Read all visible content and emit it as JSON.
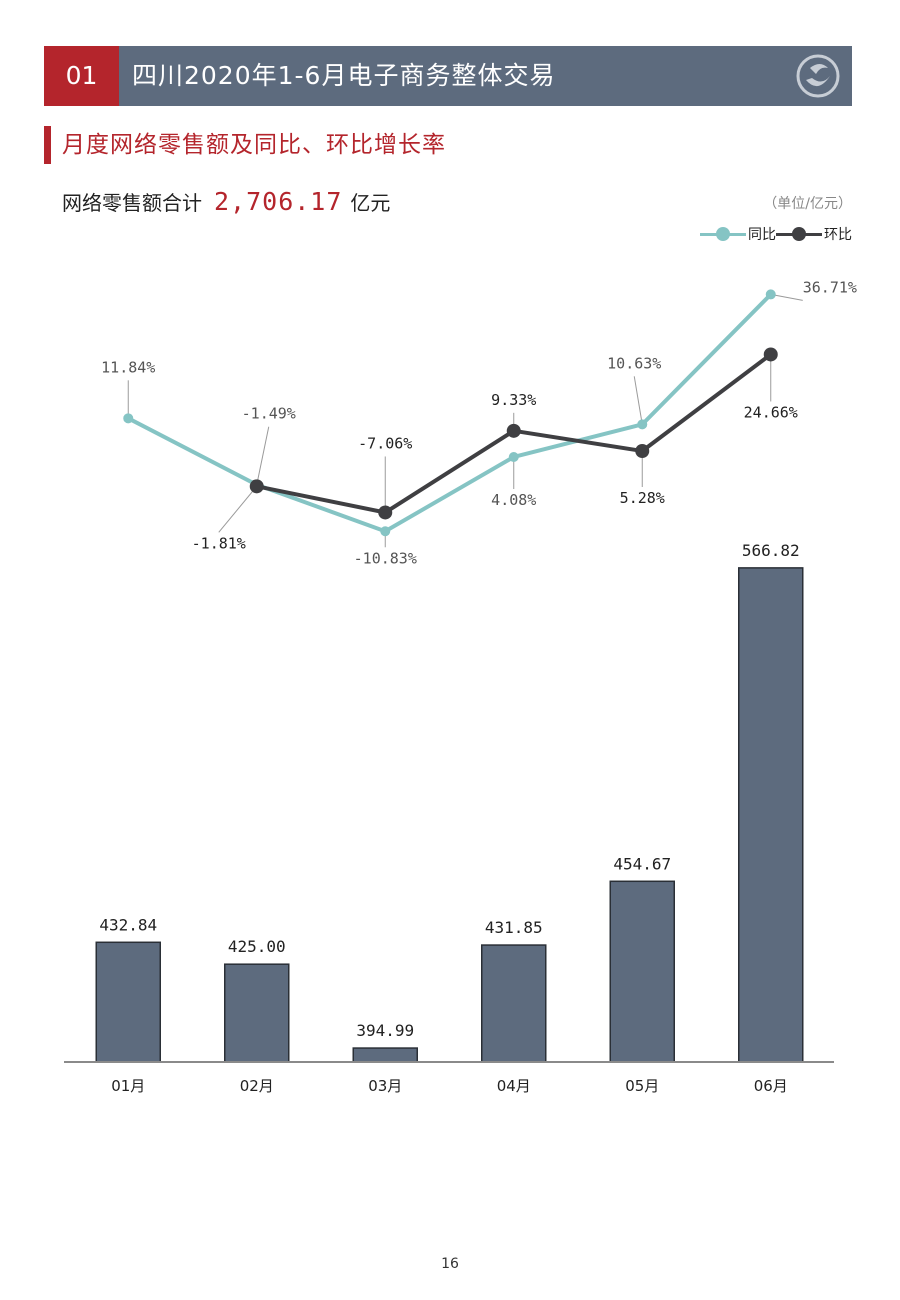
{
  "header": {
    "section_number": "01",
    "title": "四川2020年1-6月电子商务整体交易"
  },
  "section": {
    "title": "月度网络零售额及同比、环比增长率"
  },
  "summary": {
    "label": "网络零售额合计",
    "value": "2,706.17",
    "unit": "亿元"
  },
  "unit_note": "（单位/亿元）",
  "legend": {
    "yoy": "同比",
    "mom": "环比"
  },
  "colors": {
    "bar": "#5d6b7e",
    "yoy": "#85c4c4",
    "mom": "#3f3f42",
    "accent": "#b4252c"
  },
  "chart_data": {
    "type": "bar",
    "categories": [
      "01月",
      "02月",
      "03月",
      "04月",
      "05月",
      "06月"
    ],
    "values": [
      432.84,
      425.0,
      394.99,
      431.85,
      454.67,
      566.82
    ],
    "value_labels": [
      "432.84",
      "425.00",
      "394.99",
      "431.85",
      "454.67",
      "566.82"
    ],
    "series": [
      {
        "name": "网络零售额",
        "values": [
          432.84,
          425.0,
          394.99,
          431.85,
          454.67,
          566.82
        ]
      },
      {
        "name": "同比",
        "type": "line",
        "values": [
          11.84,
          -1.49,
          -10.83,
          4.08,
          10.63,
          36.71
        ],
        "labels": [
          "11.84%",
          "-1.49%",
          "-10.83%",
          "4.08%",
          "10.63%",
          "36.71%"
        ]
      },
      {
        "name": "环比",
        "type": "line",
        "values": [
          null,
          -1.81,
          -7.06,
          9.33,
          5.28,
          24.66
        ],
        "labels": [
          "",
          "-1.81%",
          "-7.06%",
          "9.33%",
          "5.28%",
          "24.66%"
        ]
      }
    ]
  },
  "page_number": "16"
}
